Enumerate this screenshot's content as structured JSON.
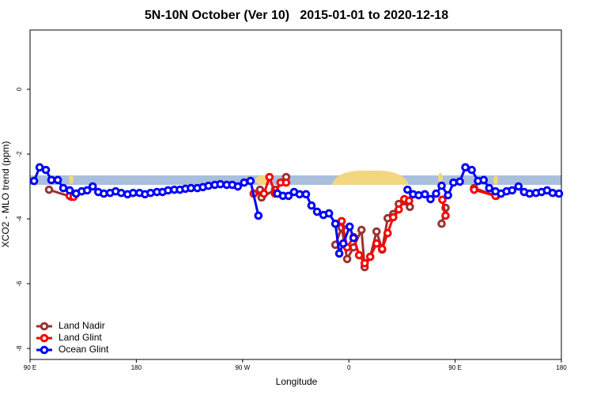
{
  "chart_data": {
    "type": "line",
    "title": "5N-10N October (Ver 10)   2015-01-01 to 2020-12-18",
    "x_label": "Longitude",
    "y_label": "XCO2 - MLO trend (ppm)",
    "xlim": [
      90,
      540
    ],
    "ylim": [
      -8.34,
      1.83
    ],
    "xticks": [
      {
        "value": 90,
        "label": "90 E"
      },
      180,
      {
        "value": 270,
        "label": "90 W"
      },
      {
        "value": 360,
        "label": "0"
      },
      {
        "value": 450,
        "label": "90 E"
      },
      {
        "value": 540,
        "label": "180"
      }
    ],
    "yticks": [
      0,
      -2,
      -4,
      -6,
      -8
    ],
    "legend": "bottomleft",
    "series": [
      {
        "name": "Land Nadir",
        "color": "#993333",
        "x": [
          106.1,
          124.9,
          null,
          284.8,
          286.1,
          297.5,
          306.9,
          null,
          348.6,
          353.9,
          358.6,
          364.0,
          370.7,
          373.4,
          378.1,
          383.5,
          388.2,
          392.9,
          397.6,
          402.3,
          407.0,
          411.7,
          null,
          438.6,
          441.9,
          null,
          466.1,
          484.9
        ],
        "values": [
          -3.1,
          -3.32,
          null,
          -3.1,
          -3.34,
          -3.1,
          -2.71,
          null,
          -4.8,
          -4.27,
          -5.24,
          -4.88,
          -4.34,
          -5.49,
          -5.17,
          -4.39,
          -4.95,
          -3.98,
          -3.85,
          -3.54,
          -3.46,
          -3.63,
          null,
          -4.15,
          -3.66,
          null,
          -3.05,
          -3.29
        ]
      },
      {
        "name": "Land Glint",
        "color": "#ff0000",
        "x": [
          123.6,
          126.9,
          null,
          279.4,
          288.1,
          292.8,
          297.5,
          302.2,
          306.9,
          null,
          353.9,
          358.6,
          364.0,
          368.7,
          373.4,
          378.1,
          383.5,
          388.2,
          392.9,
          397.6,
          402.3,
          407.0,
          411.0,
          null,
          439.2,
          441.9,
          null,
          466.1,
          484.2
        ],
        "values": [
          -3.29,
          -3.32,
          null,
          -3.22,
          -3.22,
          -2.71,
          -3.22,
          -2.88,
          -2.88,
          null,
          -4.07,
          -4.88,
          -4.56,
          -5.12,
          -5.37,
          -5.17,
          -4.76,
          -4.93,
          -4.44,
          -3.95,
          -3.71,
          -3.39,
          -3.44,
          null,
          -3.41,
          -3.9,
          null,
          -3.1,
          -3.29
        ]
      },
      {
        "name": "Ocean Glint",
        "color": "#0000ff",
        "x": [
          93.4,
          98.1,
          103.4,
          108.1,
          113.5,
          118.2,
          123.6,
          129.0,
          133.7,
          138.4,
          143.1,
          147.8,
          152.5,
          157.8,
          162.5,
          167.2,
          172.6,
          177.3,
          182.7,
          187.4,
          192.1,
          197.5,
          202.2,
          206.9,
          212.2,
          216.9,
          221.6,
          226.3,
          231.7,
          236.4,
          241.1,
          246.5,
          251.2,
          256.6,
          261.3,
          266.0,
          271.3,
          276.7,
          283.4,
          null,
          299.5,
          304.2,
          308.9,
          313.6,
          318.3,
          323.7,
          328.4,
          333.1,
          338.5,
          343.2,
          348.6,
          351.9,
          355.3,
          360.7,
          364.0,
          null,
          409.7,
          414.4,
          419.1,
          424.4,
          429.2,
          433.9,
          438.6,
          444.0,
          448.6,
          454.0,
          458.7,
          464.1,
          469.4,
          474.2,
          478.9,
          484.2,
          488.9,
          493.6,
          498.3,
          503.7,
          508.4,
          513.1,
          518.5,
          523.2,
          527.9,
          532.6,
          538.0
        ],
        "values": [
          -2.83,
          -2.41,
          -2.49,
          -2.8,
          -2.8,
          -3.05,
          -3.12,
          -3.22,
          -3.15,
          -3.12,
          -3.0,
          -3.17,
          -3.22,
          -3.2,
          -3.15,
          -3.2,
          -3.24,
          -3.2,
          -3.2,
          -3.24,
          -3.2,
          -3.17,
          -3.17,
          -3.12,
          -3.1,
          -3.1,
          -3.07,
          -3.05,
          -3.05,
          -3.02,
          -2.98,
          -2.95,
          -2.93,
          -2.95,
          -2.95,
          -3.0,
          -2.88,
          -2.83,
          -3.9,
          null,
          -3.22,
          -3.29,
          -3.29,
          -3.17,
          -3.24,
          -3.24,
          -3.59,
          -3.78,
          -3.88,
          -3.83,
          -4.15,
          -5.07,
          -4.76,
          -4.24,
          -4.59,
          null,
          -3.1,
          -3.24,
          -3.27,
          -3.24,
          -3.39,
          -3.22,
          -2.98,
          -3.27,
          -2.88,
          -2.85,
          -2.41,
          -2.49,
          -2.83,
          -2.8,
          -3.05,
          -3.15,
          -3.22,
          -3.15,
          -3.12,
          -3.0,
          -3.17,
          -3.22,
          -3.2,
          -3.17,
          -3.12,
          -3.2,
          -3.22
        ]
      }
    ]
  }
}
